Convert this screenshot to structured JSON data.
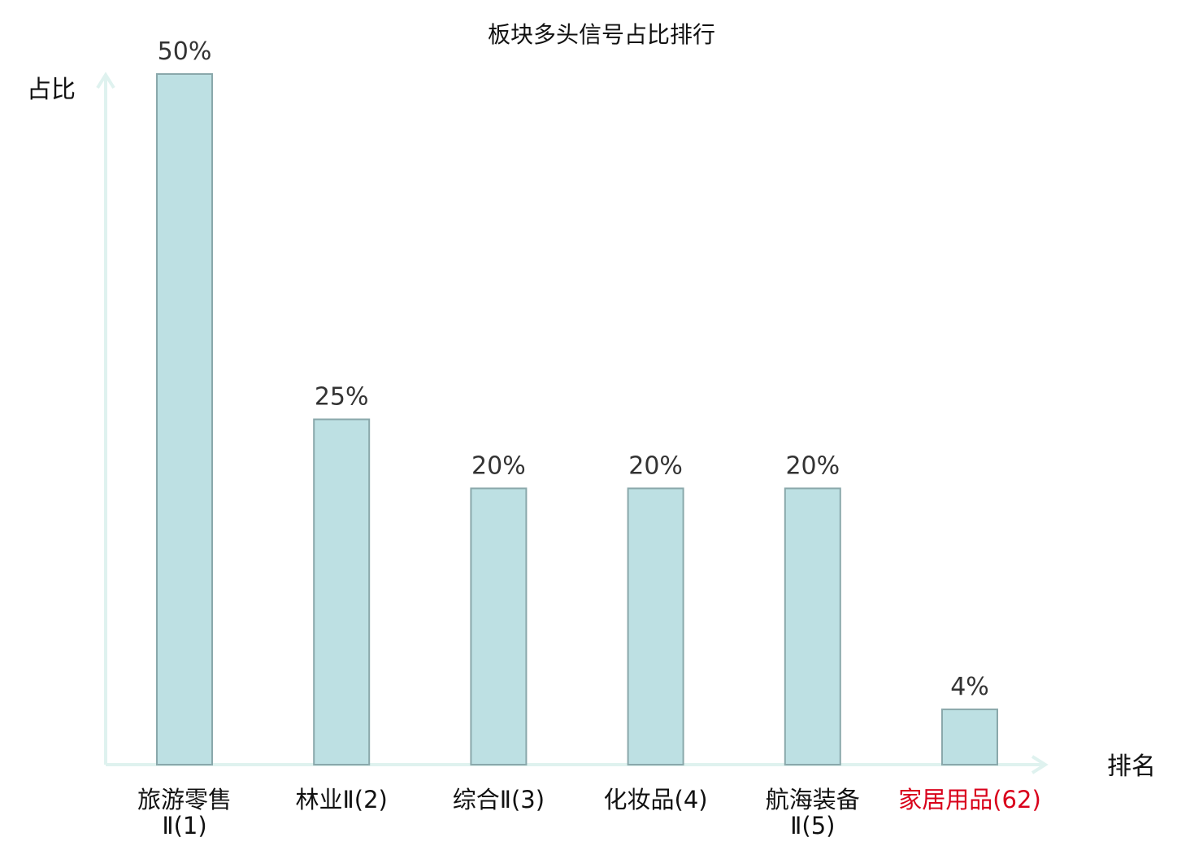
{
  "chart_data": {
    "type": "bar",
    "title": "板块多头信号占比排行",
    "ylabel": "占比",
    "xlabel": "排名",
    "categories": [
      "旅游零售Ⅱ(1)",
      "林业Ⅱ(2)",
      "综合Ⅱ(3)",
      "化妆品(4)",
      "航海装备Ⅱ(5)",
      "家居用品(62)"
    ],
    "category_lines": [
      [
        "旅游零售",
        "Ⅱ(1)"
      ],
      [
        "林业Ⅱ(2)"
      ],
      [
        "综合Ⅱ(3)"
      ],
      [
        "化妆品(4)"
      ],
      [
        "航海装备",
        "Ⅱ(5)"
      ],
      [
        "家居用品(62)"
      ]
    ],
    "values": [
      50,
      25,
      20,
      20,
      20,
      4
    ],
    "value_labels": [
      "50%",
      "25%",
      "20%",
      "20%",
      "20%",
      "4%"
    ],
    "highlight_index": 5,
    "ylim": [
      0,
      50
    ],
    "grid": false,
    "colors": {
      "bar_fill": "#bde0e3",
      "bar_stroke": "#8aa8ab",
      "axis": "#dff2ef",
      "highlight_text": "#d9001b",
      "normal_text": "#111111"
    }
  }
}
